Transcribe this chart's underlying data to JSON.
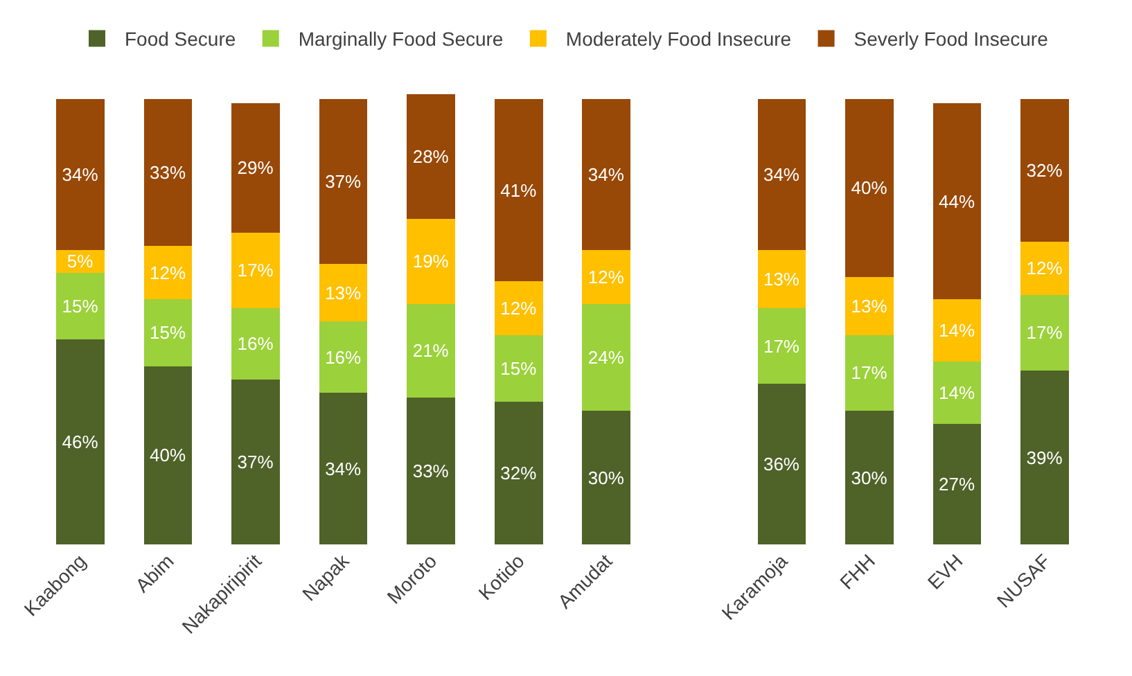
{
  "chart_data": {
    "type": "bar",
    "stacked": true,
    "legend": "top",
    "categories": [
      "Kaabong",
      "Abim",
      "Nakapiripirit",
      "Napak",
      "Moroto",
      "Kotido",
      "Amudat",
      null,
      "Karamoja",
      "FHH",
      "EVH",
      "NUSAF"
    ],
    "series": [
      {
        "name": "Food Secure",
        "color": "#4f6228",
        "values": [
          46,
          40,
          37,
          34,
          33,
          32,
          30,
          null,
          36,
          30,
          27,
          39
        ],
        "value_labels": [
          "46%",
          "40%",
          "37%",
          "34%",
          "33%",
          "32%",
          "30%",
          null,
          "36%",
          "30%",
          "27%",
          "39%"
        ]
      },
      {
        "name": "Marginally Food Secure",
        "color": "#9bd13a",
        "values": [
          15,
          15,
          16,
          16,
          21,
          15,
          24,
          null,
          17,
          17,
          14,
          17
        ],
        "value_labels": [
          "15%",
          "15%",
          "16%",
          "16%",
          "21%",
          "15%",
          "24%",
          null,
          "17%",
          "17%",
          "14%",
          "17%"
        ]
      },
      {
        "name": "Moderately Food Insecure",
        "color": "#ffc000",
        "values": [
          5,
          12,
          17,
          13,
          19,
          12,
          12,
          null,
          13,
          13,
          14,
          12
        ],
        "value_labels": [
          "5%",
          "12%",
          "17%",
          "13%",
          "19%",
          "12%",
          "12%",
          null,
          "13%",
          "13%",
          "14%",
          "12%"
        ]
      },
      {
        "name": "Severly Food Insecure",
        "color": "#984807",
        "values": [
          34,
          33,
          29,
          37,
          28,
          41,
          34,
          null,
          34,
          40,
          44,
          32
        ],
        "value_labels": [
          "34%",
          "33%",
          "29%",
          "37%",
          "28%",
          "41%",
          "34%",
          null,
          "34%",
          "40%",
          "44%",
          "32%"
        ]
      }
    ]
  }
}
